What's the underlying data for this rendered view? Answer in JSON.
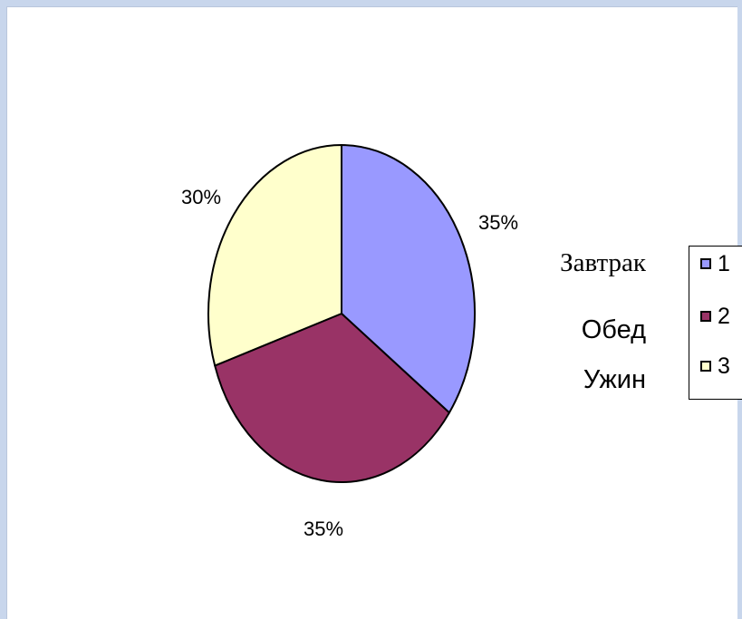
{
  "chart_data": {
    "type": "pie",
    "slices": [
      {
        "label": "1",
        "category": "Завтрак",
        "value": 35,
        "value_label": "35%",
        "color": "#9999ff"
      },
      {
        "label": "2",
        "category": "Обед",
        "value": 35,
        "value_label": "35%",
        "color": "#993366"
      },
      {
        "label": "3",
        "category": "Ужин",
        "value": 30,
        "value_label": "30%",
        "color": "#ffffcc"
      }
    ],
    "legend": {
      "placement": "right",
      "entries": [
        "1",
        "2",
        "3"
      ]
    },
    "category_labels": [
      "Завтрак",
      "Обед",
      "Ужин"
    ]
  }
}
